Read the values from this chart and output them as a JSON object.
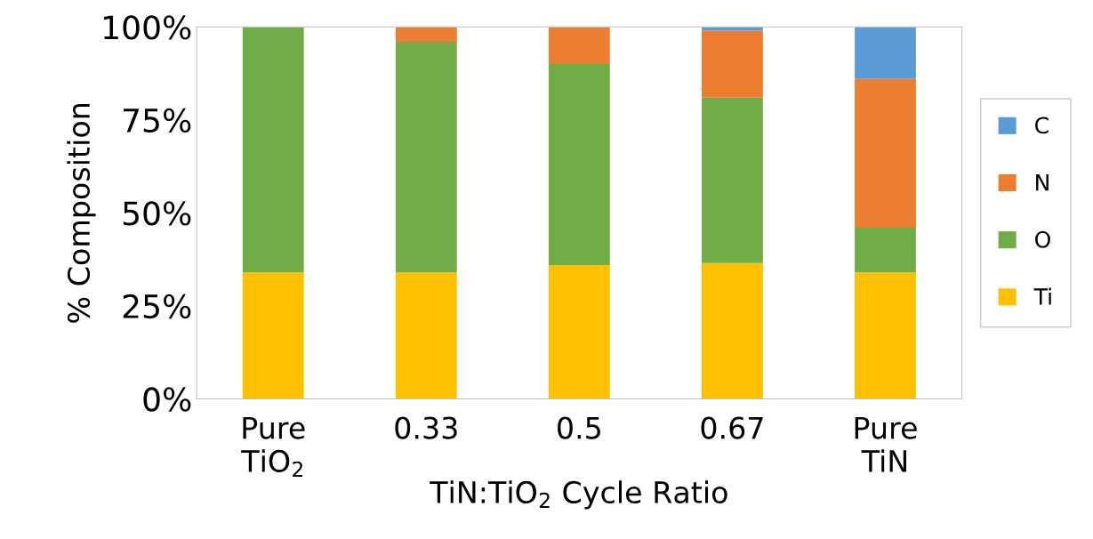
{
  "chart_data": {
    "type": "bar",
    "stacked": true,
    "ylabel": "% Composition",
    "xlabel": "TiN:TiO$_{2}$ Cycle Ratio",
    "categories": [
      "Pure\nTiO$_{2}$",
      "0.33",
      "0.5",
      "0.67",
      "Pure\nTiN"
    ],
    "series": [
      {
        "name": "Ti",
        "color": "#ffc000",
        "values": [
          34,
          34,
          36,
          36.5,
          34
        ]
      },
      {
        "name": "O",
        "color": "#70ad47",
        "values": [
          66,
          62,
          54,
          44.5,
          12
        ]
      },
      {
        "name": "N",
        "color": "#ed7d31",
        "values": [
          0,
          4,
          10,
          18,
          40
        ]
      },
      {
        "name": "C",
        "color": "#5b9bd5",
        "values": [
          0,
          0,
          0,
          1,
          14
        ]
      }
    ],
    "ylim": [
      0,
      100
    ],
    "yticks": [
      {
        "value": 0,
        "label": "0%"
      },
      {
        "value": 25,
        "label": "25%"
      },
      {
        "value": 50,
        "label": "50%"
      },
      {
        "value": 75,
        "label": "75%"
      },
      {
        "value": 100,
        "label": "100%"
      }
    ],
    "grid": false,
    "legend": "right"
  }
}
